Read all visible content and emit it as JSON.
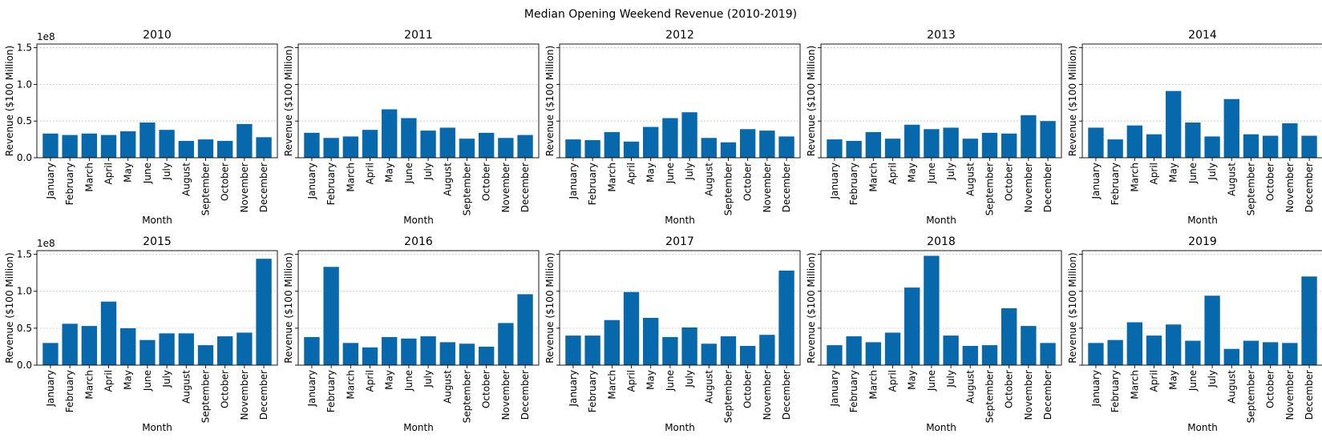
{
  "chart_data": {
    "type": "bar",
    "title": "Median Opening Weekend Revenue (2010-2019)",
    "xlabel": "Month",
    "ylabel": "Revenue ($100 Million)",
    "y_offset_label": "1e8",
    "ylim": [
      0,
      1.55
    ],
    "yticks": [
      "0.0",
      "0.5",
      "1.0",
      "1.5"
    ],
    "grid": "y-dotted",
    "bar_color": "#0868ac",
    "categories": [
      "January",
      "February",
      "March",
      "April",
      "May",
      "June",
      "July",
      "August",
      "September",
      "October",
      "November",
      "December"
    ],
    "panels": [
      {
        "title": "2010",
        "values": [
          0.33,
          0.31,
          0.33,
          0.31,
          0.36,
          0.48,
          0.38,
          0.23,
          0.25,
          0.23,
          0.46,
          0.28
        ]
      },
      {
        "title": "2011",
        "values": [
          0.34,
          0.27,
          0.29,
          0.38,
          0.66,
          0.54,
          0.37,
          0.41,
          0.26,
          0.34,
          0.27,
          0.31
        ]
      },
      {
        "title": "2012",
        "values": [
          0.25,
          0.24,
          0.35,
          0.22,
          0.42,
          0.54,
          0.62,
          0.27,
          0.21,
          0.39,
          0.37,
          0.29
        ]
      },
      {
        "title": "2013",
        "values": [
          0.25,
          0.23,
          0.35,
          0.26,
          0.45,
          0.39,
          0.41,
          0.26,
          0.34,
          0.33,
          0.58,
          0.5
        ]
      },
      {
        "title": "2014",
        "values": [
          0.41,
          0.25,
          0.44,
          0.32,
          0.91,
          0.48,
          0.29,
          0.8,
          0.32,
          0.3,
          0.47,
          0.3
        ]
      },
      {
        "title": "2015",
        "values": [
          0.3,
          0.56,
          0.53,
          0.86,
          0.5,
          0.34,
          0.43,
          0.43,
          0.27,
          0.39,
          0.44,
          1.44
        ]
      },
      {
        "title": "2016",
        "values": [
          0.38,
          1.33,
          0.3,
          0.24,
          0.38,
          0.36,
          0.39,
          0.31,
          0.29,
          0.25,
          0.57,
          0.96
        ]
      },
      {
        "title": "2017",
        "values": [
          0.4,
          0.4,
          0.61,
          0.99,
          0.64,
          0.38,
          0.51,
          0.29,
          0.39,
          0.26,
          0.41,
          1.28
        ]
      },
      {
        "title": "2018",
        "values": [
          0.27,
          0.39,
          0.31,
          0.44,
          1.05,
          1.48,
          0.4,
          0.26,
          0.27,
          0.77,
          0.53,
          0.3
        ]
      },
      {
        "title": "2019",
        "values": [
          0.3,
          0.34,
          0.58,
          0.4,
          0.55,
          0.33,
          0.94,
          0.22,
          0.33,
          0.31,
          0.3,
          1.2
        ]
      }
    ]
  }
}
